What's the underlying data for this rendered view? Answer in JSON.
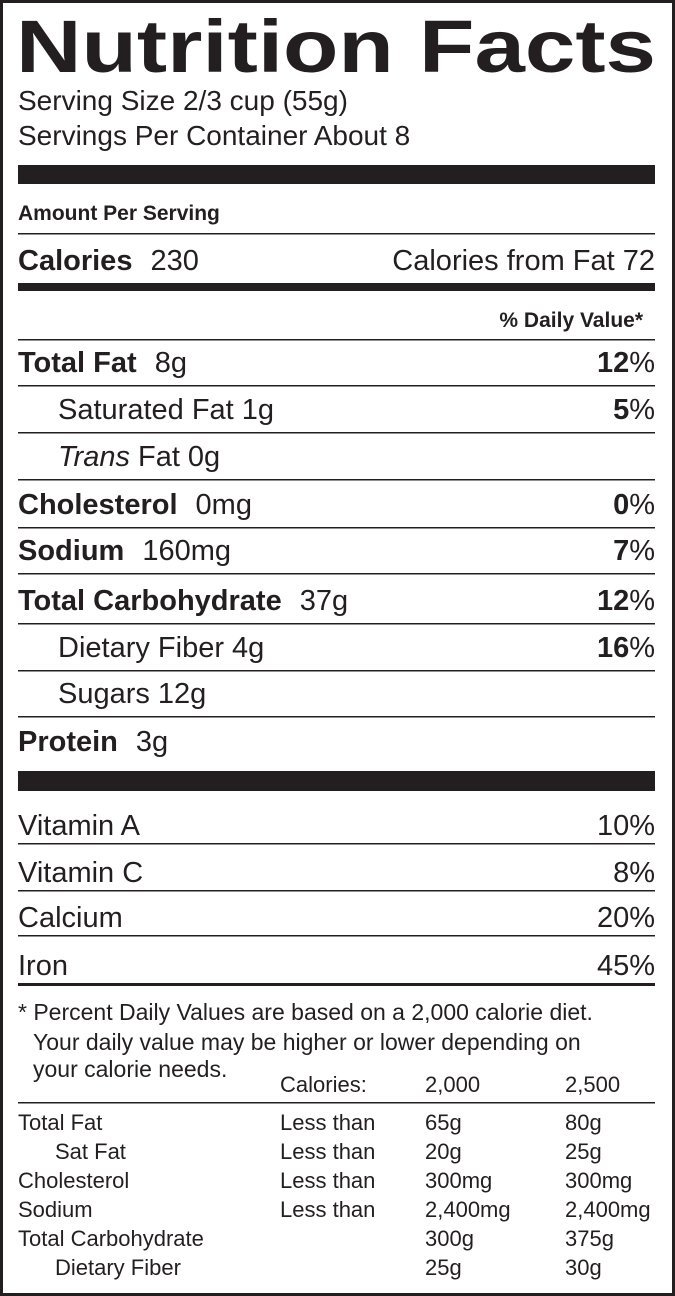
{
  "title": "Nutrition Facts",
  "serving_size": "Serving Size 2/3 cup (55g)",
  "servings_per_container": "Servings Per Container About 8",
  "amount_per_serving": "Amount Per Serving",
  "calories": {
    "label": "Calories",
    "value": "230",
    "from_fat": "Calories from Fat 72"
  },
  "daily_value_header": "% Daily Value*",
  "nutrients": [
    {
      "name": "Total Fat",
      "amount": "8g",
      "dv": "12",
      "dv_sign": "%",
      "bold": true,
      "indent": false
    },
    {
      "name": "Saturated Fat",
      "amount": "1g",
      "dv": "5",
      "dv_sign": "%",
      "bold": false,
      "indent": true
    },
    {
      "name_italic": "Trans",
      "name": "Fat",
      "amount": "0g",
      "bold": false,
      "indent": true
    },
    {
      "name": "Cholesterol",
      "amount": "0mg",
      "dv": "0",
      "dv_sign": "%",
      "bold": true,
      "indent": false
    },
    {
      "name": "Sodium",
      "amount": "160mg",
      "dv": "7",
      "dv_sign": "%",
      "bold": true,
      "indent": false
    },
    {
      "name": "Total Carbohydrate",
      "amount": "37g",
      "dv": "12",
      "dv_sign": "%",
      "bold": true,
      "indent": false
    },
    {
      "name": "Dietary Fiber",
      "amount": "4g",
      "dv": "16",
      "dv_sign": "%",
      "bold": false,
      "indent": true
    },
    {
      "name": "Sugars",
      "amount": "12g",
      "bold": false,
      "indent": true
    },
    {
      "name": "Protein",
      "amount": "3g",
      "bold": true,
      "indent": false
    }
  ],
  "vitamins": [
    {
      "name": "Vitamin A",
      "dv": "10%"
    },
    {
      "name": "Vitamin C",
      "dv": "8%"
    },
    {
      "name": "Calcium",
      "dv": "20%"
    },
    {
      "name": "Iron",
      "dv": "45%"
    }
  ],
  "footnote": [
    "* Percent Daily Values are based on a 2,000 calorie diet.",
    "Your daily value may be higher or lower depending on",
    "your calorie needs."
  ],
  "reference_table": {
    "header": [
      "Calories:",
      "2,000",
      "2,500"
    ],
    "rows": [
      {
        "cells": [
          "Total Fat",
          "Less than",
          "65g",
          "80g"
        ],
        "indent": false
      },
      {
        "cells": [
          "Sat Fat",
          "Less than",
          "20g",
          "25g"
        ],
        "indent": true
      },
      {
        "cells": [
          "Cholesterol",
          "Less than",
          "300mg",
          "300mg"
        ],
        "indent": false
      },
      {
        "cells": [
          "Sodium",
          "Less than",
          "2,400mg",
          "2,400mg"
        ],
        "indent": false
      },
      {
        "cells": [
          "Total Carbohydrate",
          null,
          "300g",
          "375g"
        ],
        "indent": false
      },
      {
        "cells": [
          "Dietary Fiber",
          null,
          "25g",
          "30g"
        ],
        "indent": true
      }
    ]
  }
}
